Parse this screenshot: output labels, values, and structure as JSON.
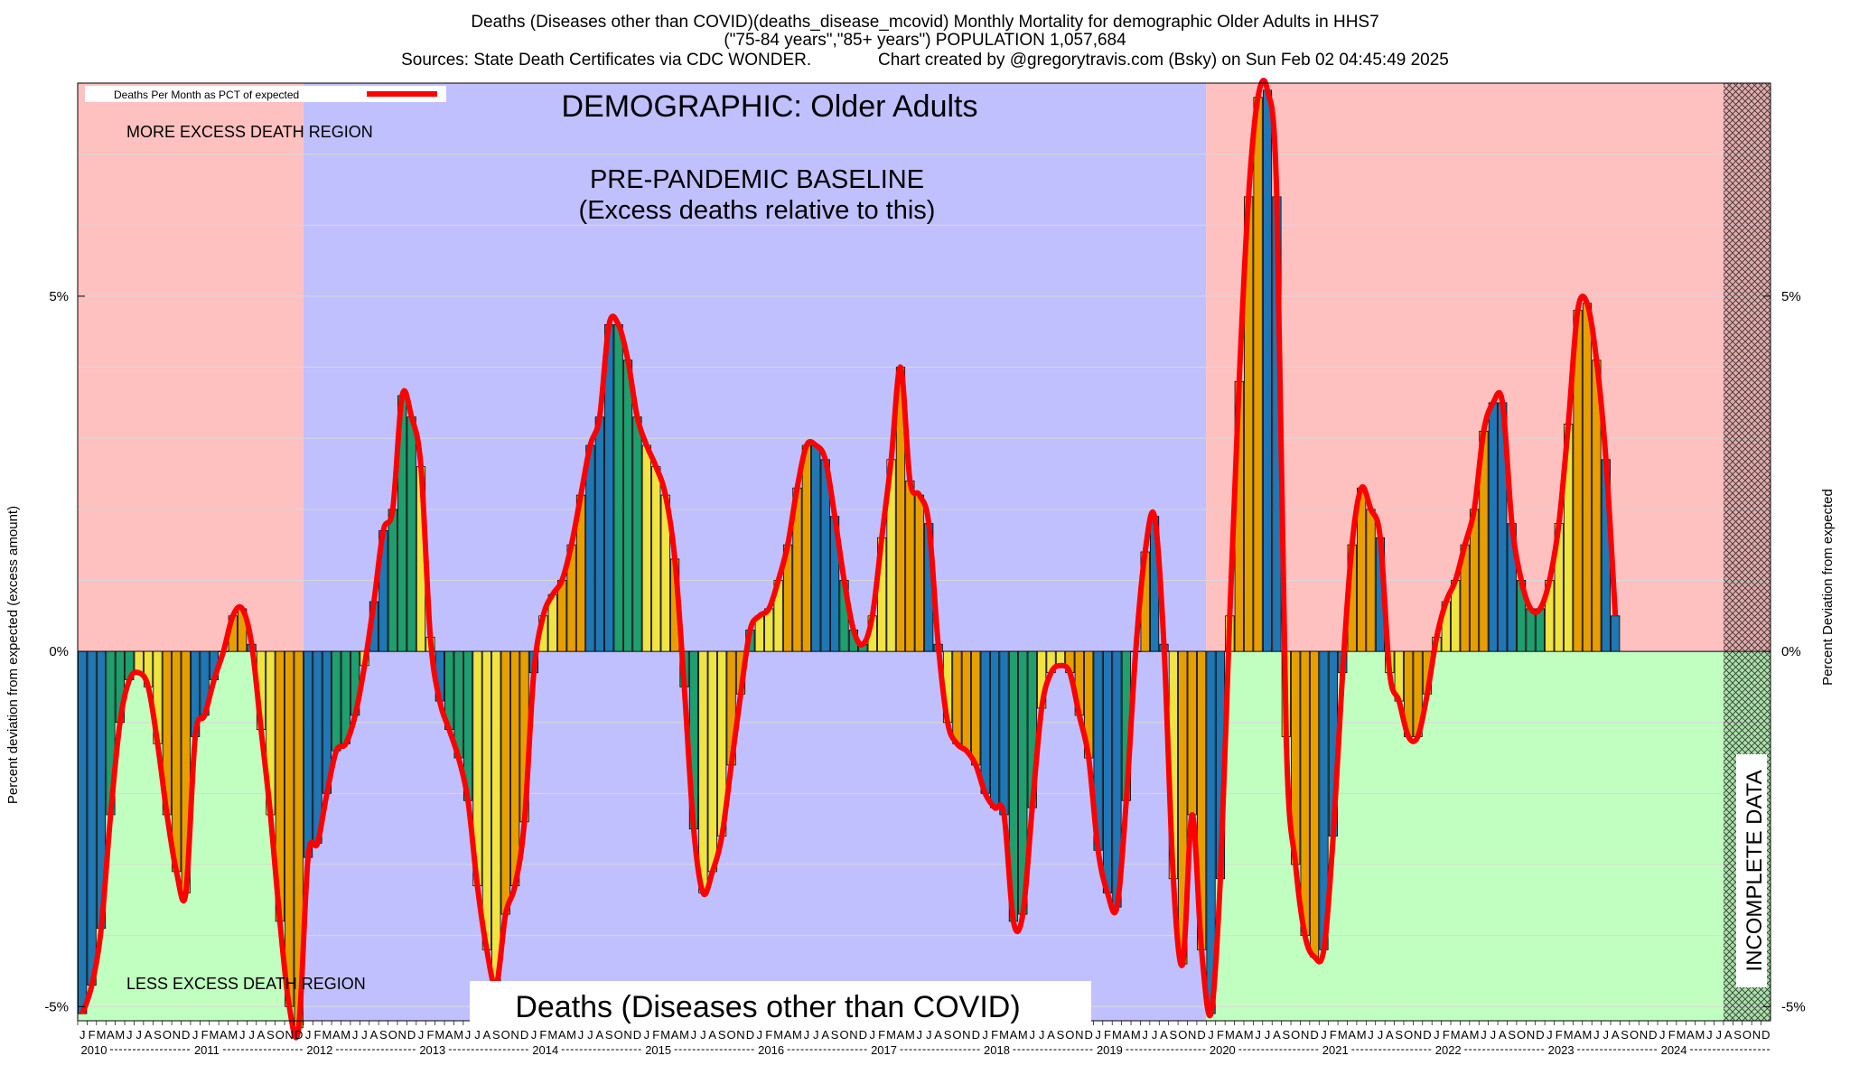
{
  "chart_data": {
    "type": "bar",
    "title_lines": [
      "Deaths (Diseases other than COVID)(deaths_disease_mcovid) Monthly Mortality for demographic Older Adults in HHS7",
      "(\"75-84 years\",\"85+ years\") POPULATION 1,057,684",
      "Sources: State Death Certificates via CDC WONDER.              Chart created by @gregorytravis.com (Bsky) on Sun Feb 02 04:45:49 2025"
    ],
    "ylabel_left": "Percent deviation from expected (excess amount)",
    "ylabel_right": "Percent Deviation from expected",
    "ylim": [
      -5.2,
      8.0
    ],
    "y_ticks": [
      {
        "value": 5,
        "label": "5%"
      },
      {
        "value": 0,
        "label": "0%"
      },
      {
        "value": -5,
        "label": "-5%"
      }
    ],
    "legend": {
      "label": "Deaths Per Month as PCT of expected",
      "color": "#ff0000",
      "placement": "top-left"
    },
    "annotations": {
      "demographic": "DEMOGRAPHIC: Older Adults",
      "more_excess": "MORE EXCESS DEATH REGION",
      "baseline_line1": "PRE-PANDEMIC BASELINE",
      "baseline_line2": "(Excess deaths relative to this)",
      "less_excess": "LESS EXCESS DEATH REGION",
      "incomplete": "INCOMPLETE DATA",
      "bottom_title": "Deaths (Diseases other than COVID)"
    },
    "baseline_period": {
      "start": "2012-01",
      "end": "2019-12"
    },
    "incomplete_period": {
      "start": "2024-08",
      "end": "2024-12"
    },
    "month_letters": [
      "J",
      "F",
      "M",
      "A",
      "M",
      "J",
      "J",
      "A",
      "S",
      "O",
      "N",
      "D"
    ],
    "years": [
      "2010",
      "2011",
      "2012",
      "2013",
      "2014",
      "2015",
      "2016",
      "2017",
      "2018",
      "2019",
      "2020",
      "2021",
      "2022",
      "2023",
      "2024"
    ],
    "colors": {
      "more_region": "#ffc0c0",
      "less_region": "#c0ffc0",
      "baseline_region": "#c0c0ff",
      "line": "#ff0000",
      "bar_palette": [
        "#1f77b4",
        "#1f9e6e",
        "#f0e442",
        "#e69f00"
      ]
    },
    "start_month": "2010-01",
    "values": [
      -5.1,
      -4.7,
      -3.9,
      -2.3,
      -1.0,
      -0.4,
      -0.3,
      -0.5,
      -1.3,
      -2.3,
      -3.1,
      -3.4,
      -1.2,
      -0.9,
      -0.4,
      0.0,
      0.5,
      0.6,
      0.1,
      -1.1,
      -2.3,
      -3.8,
      -5.0,
      -5.3,
      -2.9,
      -2.7,
      -2.0,
      -1.4,
      -1.3,
      -0.9,
      -0.2,
      0.7,
      1.7,
      2.0,
      3.6,
      3.3,
      2.6,
      0.2,
      -0.7,
      -1.1,
      -1.5,
      -2.1,
      -3.3,
      -4.2,
      -4.7,
      -3.7,
      -3.3,
      -2.4,
      -0.3,
      0.5,
      0.8,
      1.0,
      1.5,
      2.2,
      2.9,
      3.3,
      4.6,
      4.6,
      4.1,
      3.3,
      2.9,
      2.6,
      2.2,
      1.3,
      -0.5,
      -2.5,
      -3.4,
      -3.1,
      -2.6,
      -1.6,
      -0.6,
      0.3,
      0.5,
      0.6,
      1.0,
      1.5,
      2.3,
      2.9,
      2.9,
      2.7,
      1.9,
      1.0,
      0.3,
      0.1,
      0.5,
      1.6,
      2.7,
      4.0,
      2.4,
      2.2,
      1.8,
      0.1,
      -1.0,
      -1.3,
      -1.4,
      -1.6,
      -2.0,
      -2.2,
      -2.3,
      -3.8,
      -3.7,
      -2.2,
      -0.8,
      -0.3,
      -0.2,
      -0.3,
      -0.9,
      -1.5,
      -2.8,
      -3.4,
      -3.6,
      -2.1,
      0.0,
      1.4,
      1.9,
      0.1,
      -3.2,
      -4.4,
      -2.3,
      -4.2,
      -5.1,
      -3.2,
      0.5,
      3.8,
      6.4,
      7.8,
      7.9,
      6.4,
      -1.2,
      -3.0,
      -4.0,
      -4.3,
      -4.2,
      -2.6,
      -0.3,
      1.5,
      2.3,
      2.0,
      1.6,
      -0.3,
      -0.7,
      -1.2,
      -1.2,
      -0.6,
      0.2,
      0.7,
      1.0,
      1.5,
      2.0,
      3.1,
      3.5,
      3.5,
      1.8,
      1.0,
      0.6,
      0.6,
      1.0,
      1.8,
      3.2,
      4.8,
      4.9,
      4.1,
      2.7,
      0.5
    ]
  }
}
